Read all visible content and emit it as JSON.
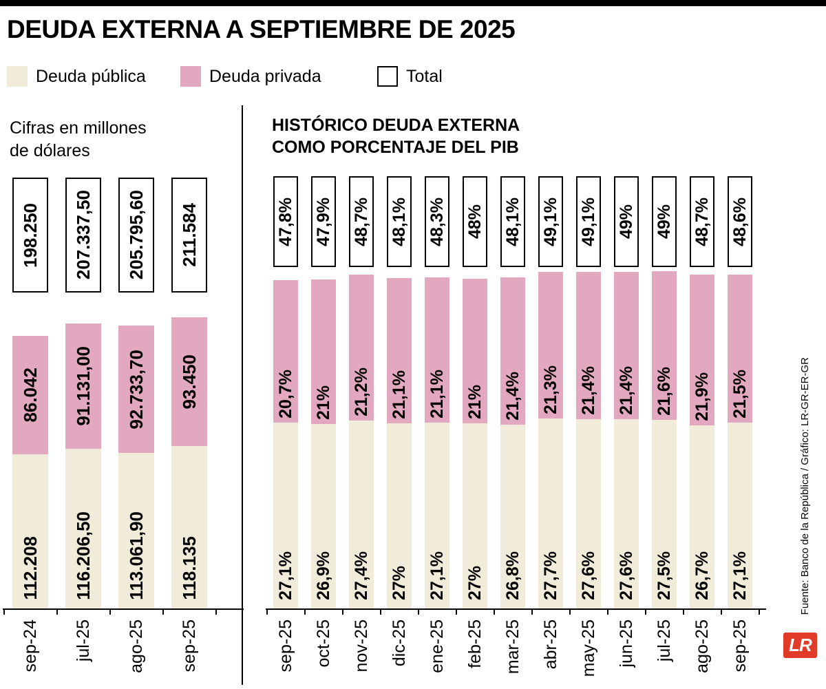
{
  "page": {
    "title": "DEUDA EXTERNA A SEPTIEMBRE DE 2025",
    "source": "Fuente: Banco de la República / Gráfico: LR-GR-ER-GR",
    "logo_text": "LR"
  },
  "legend": {
    "items": [
      {
        "label": "Deuda pública",
        "swatch": "public"
      },
      {
        "label": "Deuda privada",
        "swatch": "private"
      },
      {
        "label": "Total",
        "swatch": "total"
      }
    ]
  },
  "colors": {
    "public": "#F1ECDA",
    "private": "#E1A8BF",
    "logo_red": "#E23A28",
    "line": "#000000"
  },
  "chart_data": [
    {
      "type": "bar",
      "stacked": true,
      "title": "Cifras en millones de dólares",
      "title_lines": [
        "Cifras en millones",
        "de dólares"
      ],
      "categories": [
        "sep-24",
        "jul-25",
        "ago-25",
        "sep-25"
      ],
      "series": [
        {
          "name": "Deuda pública",
          "values": [
            112208,
            116206.5,
            113061.9,
            118135
          ],
          "labels": [
            "112.208",
            "116.206,50",
            "113.061,90",
            "118.135"
          ]
        },
        {
          "name": "Deuda privada",
          "values": [
            86042,
            91131,
            92733.7,
            93450
          ],
          "labels": [
            "86.042",
            "91.131,00",
            "92.733,70",
            "93.450"
          ]
        }
      ],
      "totals": {
        "values": [
          198250,
          207337.5,
          205795.6,
          211584
        ],
        "labels": [
          "198.250",
          "207.337,50",
          "205.795,60",
          "211.584"
        ]
      }
    },
    {
      "type": "bar",
      "stacked": true,
      "title": "HISTÓRICO DEUDA EXTERNA COMO PORCENTAJE DEL PIB",
      "title_lines": [
        "HISTÓRICO DEUDA EXTERNA",
        "COMO PORCENTAJE DEL PIB"
      ],
      "categories": [
        "sep-25",
        "oct-25",
        "nov-25",
        "dic-25",
        "ene-25",
        "feb-25",
        "mar-25",
        "abr-25",
        "may-25",
        "jun-25",
        "jul-25",
        "ago-25",
        "sep-25"
      ],
      "series": [
        {
          "name": "Deuda pública",
          "values": [
            27.1,
            26.9,
            27.4,
            27,
            27.1,
            27,
            26.8,
            27.7,
            27.6,
            27.6,
            27.5,
            26.7,
            27.1
          ],
          "labels": [
            "27,1%",
            "26,9%",
            "27,4%",
            "27%",
            "27,1%",
            "27%",
            "26,8%",
            "27,7%",
            "27,6%",
            "27,6%",
            "27,5%",
            "26,7%",
            "27,1%"
          ]
        },
        {
          "name": "Deuda privada",
          "values": [
            20.7,
            21,
            21.2,
            21.1,
            21.1,
            21,
            21.4,
            21.3,
            21.4,
            21.4,
            21.6,
            21.9,
            21.5
          ],
          "labels": [
            "20,7%",
            "21%",
            "21,2%",
            "21,1%",
            "21,1%",
            "21%",
            "21,4%",
            "21,3%",
            "21,4%",
            "21,4%",
            "21,6%",
            "21,9%",
            "21,5%"
          ]
        }
      ],
      "totals": {
        "values": [
          47.8,
          47.9,
          48.7,
          48.1,
          48.3,
          48,
          48.1,
          49.1,
          49.1,
          49,
          49,
          48.7,
          48.6
        ],
        "labels": [
          "47,8%",
          "47,9%",
          "48,7%",
          "48,1%",
          "48,3%",
          "48%",
          "48,1%",
          "49,1%",
          "49,1%",
          "49%",
          "49%",
          "48,7%",
          "48,6%"
        ]
      }
    }
  ]
}
